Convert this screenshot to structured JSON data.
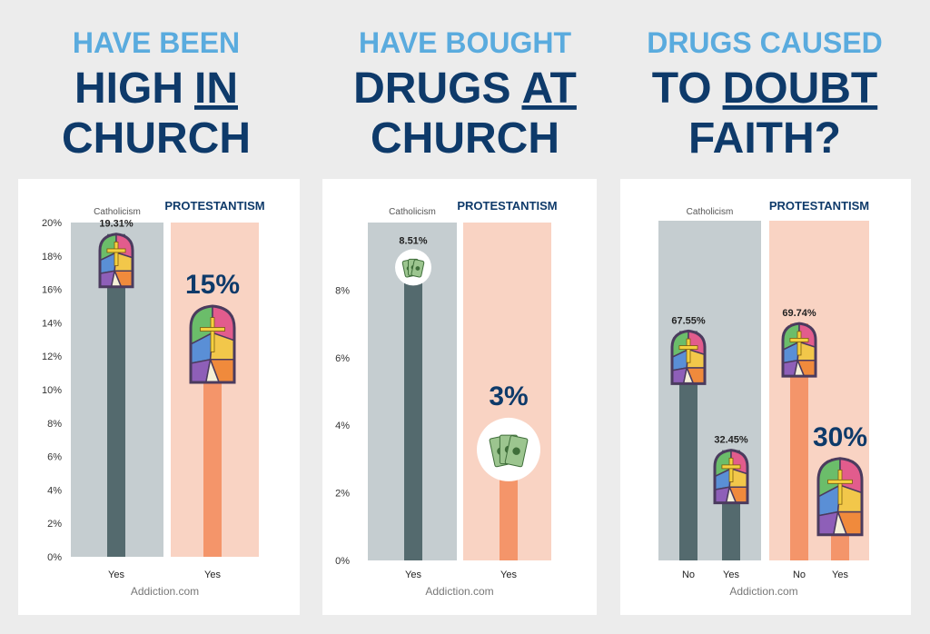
{
  "chart_data": [
    {
      "type": "bar",
      "title": {
        "lines": [
          [
            "HAVE BEEN"
          ],
          [
            "HIGH",
            "IN"
          ],
          [
            "CHURCH"
          ]
        ],
        "underline": [
          1,
          1
        ]
      },
      "ylim": [
        0,
        20
      ],
      "yticks": [
        {
          "value": 0,
          "label": "0%"
        },
        {
          "value": 2,
          "label": "2%"
        },
        {
          "value": 4,
          "label": "4%"
        },
        {
          "value": 6,
          "label": "6%"
        },
        {
          "value": 8,
          "label": "8%"
        },
        {
          "value": 10,
          "label": "10%"
        },
        {
          "value": 12,
          "label": "12%"
        },
        {
          "value": 14,
          "label": "14%"
        },
        {
          "value": 16,
          "label": "16%"
        },
        {
          "value": 18,
          "label": "18%"
        },
        {
          "value": 20,
          "label": "20%"
        }
      ],
      "series": [
        {
          "name": "Catholicism",
          "color": "#546a6e",
          "band_color": "#c5cdd0",
          "categories": [
            "Yes"
          ],
          "values": [
            19.31
          ],
          "value_labels": [
            "19.31%"
          ],
          "big_labels": [
            false
          ]
        },
        {
          "name": "PROTESTANTISM",
          "color": "#f4956a",
          "band_color": "#f9d3c3",
          "categories": [
            "Yes"
          ],
          "values": [
            15
          ],
          "value_labels": [
            "15%"
          ],
          "big_labels": [
            true
          ]
        }
      ],
      "marker": "window",
      "source": "Addiction.com"
    },
    {
      "type": "bar",
      "title": {
        "lines": [
          [
            "HAVE BOUGHT"
          ],
          [
            "DRUGS",
            "AT"
          ],
          [
            "CHURCH"
          ]
        ],
        "underline": [
          1,
          1
        ]
      },
      "ylim": [
        0,
        10
      ],
      "yticks": [
        {
          "value": 0,
          "label": "0%"
        },
        {
          "value": 2,
          "label": "2%"
        },
        {
          "value": 4,
          "label": "4%"
        },
        {
          "value": 6,
          "label": "6%"
        },
        {
          "value": 8,
          "label": "8%"
        }
      ],
      "series": [
        {
          "name": "Catholicism",
          "color": "#546a6e",
          "band_color": "#c5cdd0",
          "categories": [
            "Yes"
          ],
          "values": [
            8.51
          ],
          "value_labels": [
            "8.51%"
          ],
          "big_labels": [
            false
          ]
        },
        {
          "name": "PROTESTANTISM",
          "color": "#f4956a",
          "band_color": "#f9d3c3",
          "categories": [
            "Yes"
          ],
          "values": [
            3
          ],
          "value_labels": [
            "3%"
          ],
          "big_labels": [
            true
          ]
        }
      ],
      "marker": "money",
      "source": "Addiction.com"
    },
    {
      "type": "bar",
      "title": {
        "lines": [
          [
            "DRUGS CAUSED"
          ],
          [
            "TO",
            "DOUBT"
          ],
          [
            "FAITH?"
          ]
        ],
        "underline": [
          1,
          1
        ]
      },
      "ylim": [
        0,
        100
      ],
      "series": [
        {
          "name": "Catholicism",
          "color": "#546a6e",
          "band_color": "#c5cdd0",
          "categories": [
            "No",
            "Yes"
          ],
          "values": [
            67.55,
            32.45
          ],
          "value_labels": [
            "67.55%",
            "32.45%"
          ],
          "big_labels": [
            false,
            false
          ]
        },
        {
          "name": "PROTESTANTISM",
          "color": "#f4956a",
          "band_color": "#f9d3c3",
          "categories": [
            "No",
            "Yes"
          ],
          "values": [
            69.74,
            30
          ],
          "value_labels": [
            "69.74%",
            "30%"
          ],
          "big_labels": [
            false,
            true
          ]
        }
      ],
      "marker": "window",
      "source": "Addiction.com"
    }
  ]
}
